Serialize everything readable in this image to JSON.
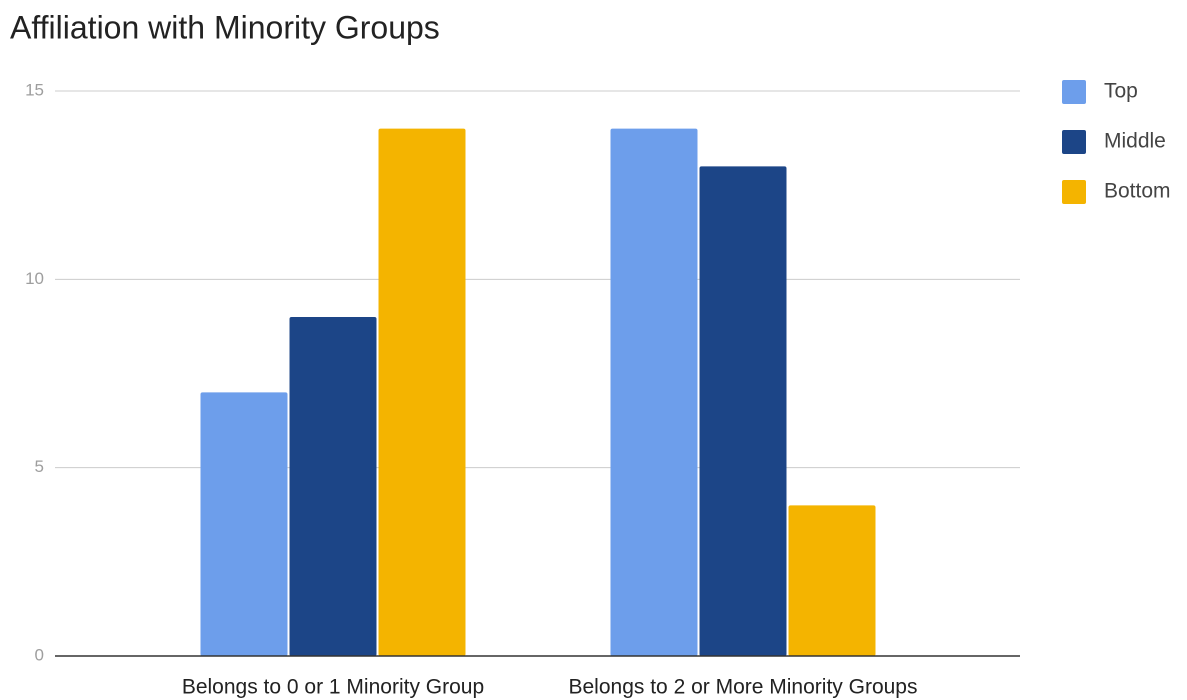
{
  "chart_data": {
    "type": "bar",
    "title": "Affiliation with Minority Groups",
    "categories": [
      "Belongs to 0 or 1 Minority Group",
      "Belongs to 2 or More Minority Groups"
    ],
    "series": [
      {
        "name": "Top",
        "color": "#6d9eeb",
        "values": [
          7,
          14
        ]
      },
      {
        "name": "Middle",
        "color": "#1c4587",
        "values": [
          9,
          13
        ]
      },
      {
        "name": "Bottom",
        "color": "#f4b400",
        "values": [
          14,
          4
        ]
      }
    ],
    "ylim": [
      0,
      15
    ],
    "yticks": [
      0,
      5,
      10,
      15
    ],
    "grid": true,
    "legend": "right"
  }
}
